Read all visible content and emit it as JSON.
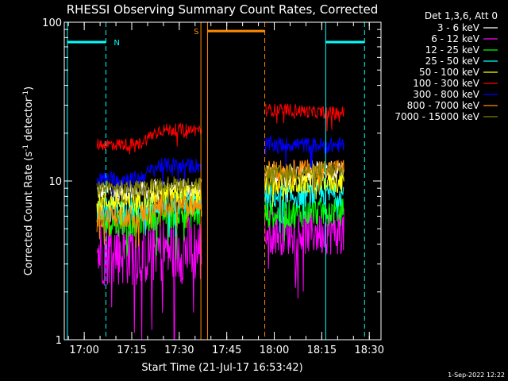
{
  "chart_data": {
    "type": "line",
    "title": "RHESSI Observing Summary Count Rates, Corrected",
    "xlabel": "Start Time (21-Jul-17 16:53:42)",
    "ylabel_main": "Corrected Count Rate (s",
    "ylabel_sup1": "-1",
    "ylabel_mid": " detector",
    "ylabel_sup2": "-1",
    "ylabel_end": ")",
    "footer": "1-Sep-2022 12:22",
    "yscale": "log",
    "ylim": [
      1,
      100
    ],
    "yticks": [
      {
        "value": 1,
        "label": "1"
      },
      {
        "value": 10,
        "label": "10"
      },
      {
        "value": 100,
        "label": "100"
      }
    ],
    "xlim": [
      "16:53:42",
      "18:33:42"
    ],
    "xticks": [
      {
        "time": "17:00",
        "label": "17:00"
      },
      {
        "time": "17:15",
        "label": "17:15"
      },
      {
        "time": "17:30",
        "label": "17:30"
      },
      {
        "time": "17:45",
        "label": "17:45"
      },
      {
        "time": "18:00",
        "label": "18:00"
      },
      {
        "time": "18:15",
        "label": "18:15"
      },
      {
        "time": "18:30",
        "label": "18:30"
      }
    ],
    "legend_title": "Det 1,3,6, Att 0",
    "legend_position": "right",
    "series": [
      {
        "name": "3 - 6 keV",
        "color": "#ffffff",
        "segments": [
          {
            "start": "17:04",
            "end": "17:37",
            "level": 8.6,
            "jitter": 0.06,
            "end_level": 9.0
          },
          {
            "start": "17:57",
            "end": "18:22",
            "level": 11.0,
            "jitter": 0.07,
            "end_level": 11.5
          }
        ]
      },
      {
        "name": "6 - 12 keV",
        "color": "#ff00ff",
        "segments": [
          {
            "start": "17:04",
            "end": "17:37",
            "level": 3.6,
            "jitter": 0.22,
            "end_level": 3.7
          },
          {
            "start": "17:57",
            "end": "18:22",
            "level": 4.8,
            "jitter": 0.15,
            "end_level": 4.8
          }
        ]
      },
      {
        "name": "12 - 25 keV",
        "color": "#00ff00",
        "segments": [
          {
            "start": "17:04",
            "end": "17:37",
            "level": 5.6,
            "jitter": 0.1,
            "end_level": 6.3
          },
          {
            "start": "17:57",
            "end": "18:22",
            "level": 6.2,
            "jitter": 0.09,
            "end_level": 6.4
          }
        ]
      },
      {
        "name": "25 - 50 keV",
        "color": "#00ffff",
        "segments": [
          {
            "start": "17:04",
            "end": "17:37",
            "level": 6.6,
            "jitter": 0.08,
            "end_level": 7.2
          },
          {
            "start": "17:57",
            "end": "18:22",
            "level": 8.0,
            "jitter": 0.08,
            "end_level": 8.3
          }
        ]
      },
      {
        "name": "50 - 100 keV",
        "color": "#ffff00",
        "segments": [
          {
            "start": "17:04",
            "end": "17:37",
            "level": 7.4,
            "jitter": 0.07,
            "end_level": 8.2
          },
          {
            "start": "17:57",
            "end": "18:22",
            "level": 9.5,
            "jitter": 0.07,
            "end_level": 9.8
          }
        ]
      },
      {
        "name": "100 - 300 keV",
        "color": "#ff0000",
        "segments": [
          {
            "start": "17:04",
            "end": "17:37",
            "level": 17.0,
            "jitter": 0.04,
            "end_level": 21.0
          },
          {
            "start": "17:57",
            "end": "18:22",
            "level": 28.0,
            "jitter": 0.04,
            "end_level": 27.0
          }
        ]
      },
      {
        "name": "300 - 800 keV",
        "color": "#0000ff",
        "segments": [
          {
            "start": "17:04",
            "end": "17:37",
            "level": 10.3,
            "jitter": 0.05,
            "end_level": 12.5
          },
          {
            "start": "17:57",
            "end": "18:22",
            "level": 17.0,
            "jitter": 0.05,
            "end_level": 16.8
          }
        ]
      },
      {
        "name": "800 - 7000 keV",
        "color": "#ff8c00",
        "segments": [
          {
            "start": "17:04",
            "end": "17:37",
            "level": 6.0,
            "jitter": 0.07,
            "end_level": 7.0
          },
          {
            "start": "17:57",
            "end": "18:22",
            "level": 11.8,
            "jitter": 0.06,
            "end_level": 12.0
          }
        ]
      },
      {
        "name": "7000 - 15000 keV",
        "color": "#808000",
        "segments": [
          {
            "start": "17:04",
            "end": "17:37",
            "level": 9.0,
            "jitter": 0.05,
            "end_level": 9.6
          },
          {
            "start": "17:57",
            "end": "18:22",
            "level": 11.3,
            "jitter": 0.05,
            "end_level": 11.6
          }
        ]
      }
    ],
    "annotations": {
      "vertical_lines": [
        {
          "time": "16:54:40",
          "color": "#00ffff",
          "style": "solid"
        },
        {
          "time": "17:06:50",
          "color": "#00ffff",
          "style": "dashed"
        },
        {
          "time": "17:36:50",
          "color": "#ff8c00",
          "style": "solid"
        },
        {
          "time": "17:38:55",
          "color": "#ff8c00",
          "style": "solid"
        },
        {
          "time": "17:57:00",
          "color": "#ff8c00",
          "style": "dashed"
        },
        {
          "time": "18:16:15",
          "color": "#00ffff",
          "style": "solid"
        },
        {
          "time": "18:28:30",
          "color": "#00ffff",
          "style": "dashed"
        }
      ],
      "bars": [
        {
          "start": "16:54:40",
          "end": "17:06:50",
          "level": 75,
          "color": "#00ffff",
          "label": "N",
          "label_time": "17:09:20",
          "label_side": "right"
        },
        {
          "start": "17:38:55",
          "end": "17:57:00",
          "level": 88,
          "color": "#ff8c00",
          "label": "S",
          "label_time": "17:36:10",
          "label_side": "left"
        },
        {
          "start": "18:16:15",
          "end": "18:28:30",
          "level": 75,
          "color": "#00ffff",
          "label": "",
          "label_time": "",
          "label_side": "right"
        }
      ]
    }
  }
}
